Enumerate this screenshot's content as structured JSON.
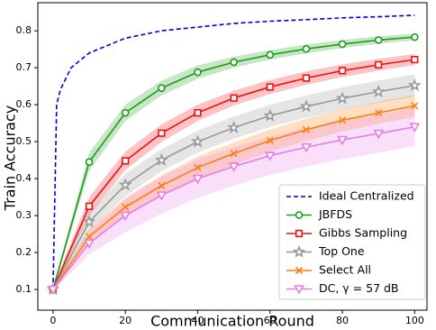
{
  "chart_data": {
    "type": "line",
    "x_label": "Communication Round",
    "y_label": "Train Accuracy",
    "xlim": [
      -4.2,
      103.4
    ],
    "ylim": [
      0.044,
      0.876
    ],
    "xticks": [
      0,
      20,
      40,
      60,
      80,
      100
    ],
    "yticks": [
      0.1,
      0.2,
      0.3,
      0.4,
      0.5,
      0.6,
      0.7,
      0.8
    ],
    "legend": "lower right",
    "series": [
      {
        "name": "Ideal Centralized",
        "color": "#0000dd",
        "dash": true,
        "marker": null,
        "x": [
          0,
          1,
          2,
          5,
          10,
          20,
          30,
          40,
          50,
          60,
          70,
          80,
          90,
          100
        ],
        "values": [
          0.1,
          0.6,
          0.64,
          0.7,
          0.74,
          0.78,
          0.8,
          0.81,
          0.82,
          0.826,
          0.83,
          0.835,
          0.838,
          0.842
        ]
      },
      {
        "name": "JBFDS",
        "color": "#1c9c1c",
        "marker": "circle",
        "x": [
          0,
          10,
          20,
          30,
          40,
          50,
          60,
          70,
          80,
          90,
          100
        ],
        "values": [
          0.1,
          0.445,
          0.578,
          0.645,
          0.688,
          0.715,
          0.735,
          0.751,
          0.764,
          0.775,
          0.783
        ],
        "errors": [
          0.005,
          0.025,
          0.022,
          0.02,
          0.018,
          0.015,
          0.013,
          0.012,
          0.011,
          0.01,
          0.009
        ]
      },
      {
        "name": "Gibbs Sampling",
        "color": "#ee1111",
        "marker": "square",
        "x": [
          0,
          10,
          20,
          30,
          40,
          50,
          60,
          70,
          80,
          90,
          100
        ],
        "values": [
          0.1,
          0.325,
          0.448,
          0.523,
          0.578,
          0.618,
          0.648,
          0.672,
          0.692,
          0.708,
          0.722
        ],
        "errors": [
          0.005,
          0.025,
          0.025,
          0.024,
          0.022,
          0.02,
          0.019,
          0.018,
          0.017,
          0.016,
          0.015
        ]
      },
      {
        "name": "Top One",
        "color": "#999999",
        "marker": "star",
        "x": [
          0,
          10,
          20,
          30,
          40,
          50,
          60,
          70,
          80,
          90,
          100
        ],
        "values": [
          0.1,
          0.283,
          0.383,
          0.45,
          0.5,
          0.538,
          0.57,
          0.595,
          0.617,
          0.635,
          0.652
        ],
        "errors": [
          0.005,
          0.025,
          0.03,
          0.03,
          0.03,
          0.03,
          0.03,
          0.03,
          0.03,
          0.03,
          0.03
        ]
      },
      {
        "name": "Select All",
        "color": "#ff7f0e",
        "marker": "x",
        "x": [
          0,
          10,
          20,
          30,
          40,
          50,
          60,
          70,
          80,
          90,
          100
        ],
        "values": [
          0.1,
          0.243,
          0.323,
          0.381,
          0.43,
          0.468,
          0.503,
          0.532,
          0.558,
          0.578,
          0.597
        ],
        "errors": [
          0.005,
          0.02,
          0.025,
          0.028,
          0.03,
          0.03,
          0.03,
          0.03,
          0.03,
          0.03,
          0.03
        ]
      },
      {
        "name": "DC, γ = 57 dB",
        "color": "#e67ee6",
        "marker": "triangle-down",
        "x": [
          0,
          10,
          20,
          30,
          40,
          50,
          60,
          70,
          80,
          90,
          100
        ],
        "values": [
          0.1,
          0.225,
          0.3,
          0.355,
          0.4,
          0.433,
          0.462,
          0.485,
          0.505,
          0.522,
          0.54
        ],
        "errors": [
          0.005,
          0.03,
          0.045,
          0.05,
          0.052,
          0.052,
          0.052,
          0.052,
          0.052,
          0.052,
          0.052
        ]
      }
    ]
  }
}
